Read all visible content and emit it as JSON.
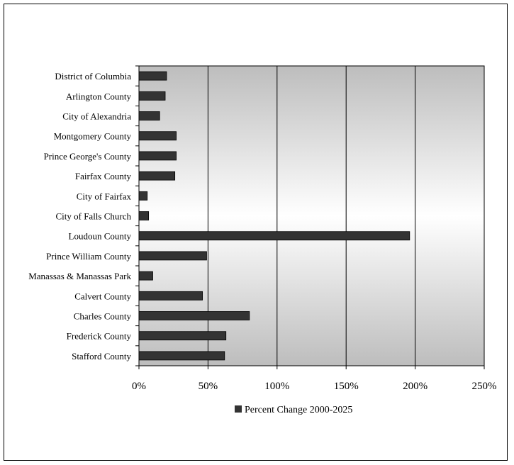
{
  "chart_data": {
    "type": "bar",
    "orientation": "horizontal",
    "categories": [
      "District of Columbia",
      "Arlington County",
      "City of Alexandria",
      "Montgomery County",
      "Prince George's County",
      "Fairfax County",
      "City of Fairfax",
      "City of Falls Church",
      "Loudoun County",
      "Prince William County",
      "Manassas & Manassas Park",
      "Calvert County",
      "Charles County",
      "Frederick County",
      "Stafford County"
    ],
    "series": [
      {
        "name": "Percent Change 2000-2025",
        "values": [
          20,
          19,
          15,
          27,
          27,
          26,
          6,
          7,
          196,
          49,
          10,
          46,
          80,
          63,
          62
        ],
        "color": "#333333"
      }
    ],
    "xlim": [
      0,
      250
    ],
    "xticks": [
      "0%",
      "50%",
      "100%",
      "150%",
      "200%",
      "250%"
    ],
    "xtick_values": [
      0,
      50,
      100,
      150,
      200,
      250
    ],
    "grid": "vertical",
    "legend_position": "bottom"
  }
}
